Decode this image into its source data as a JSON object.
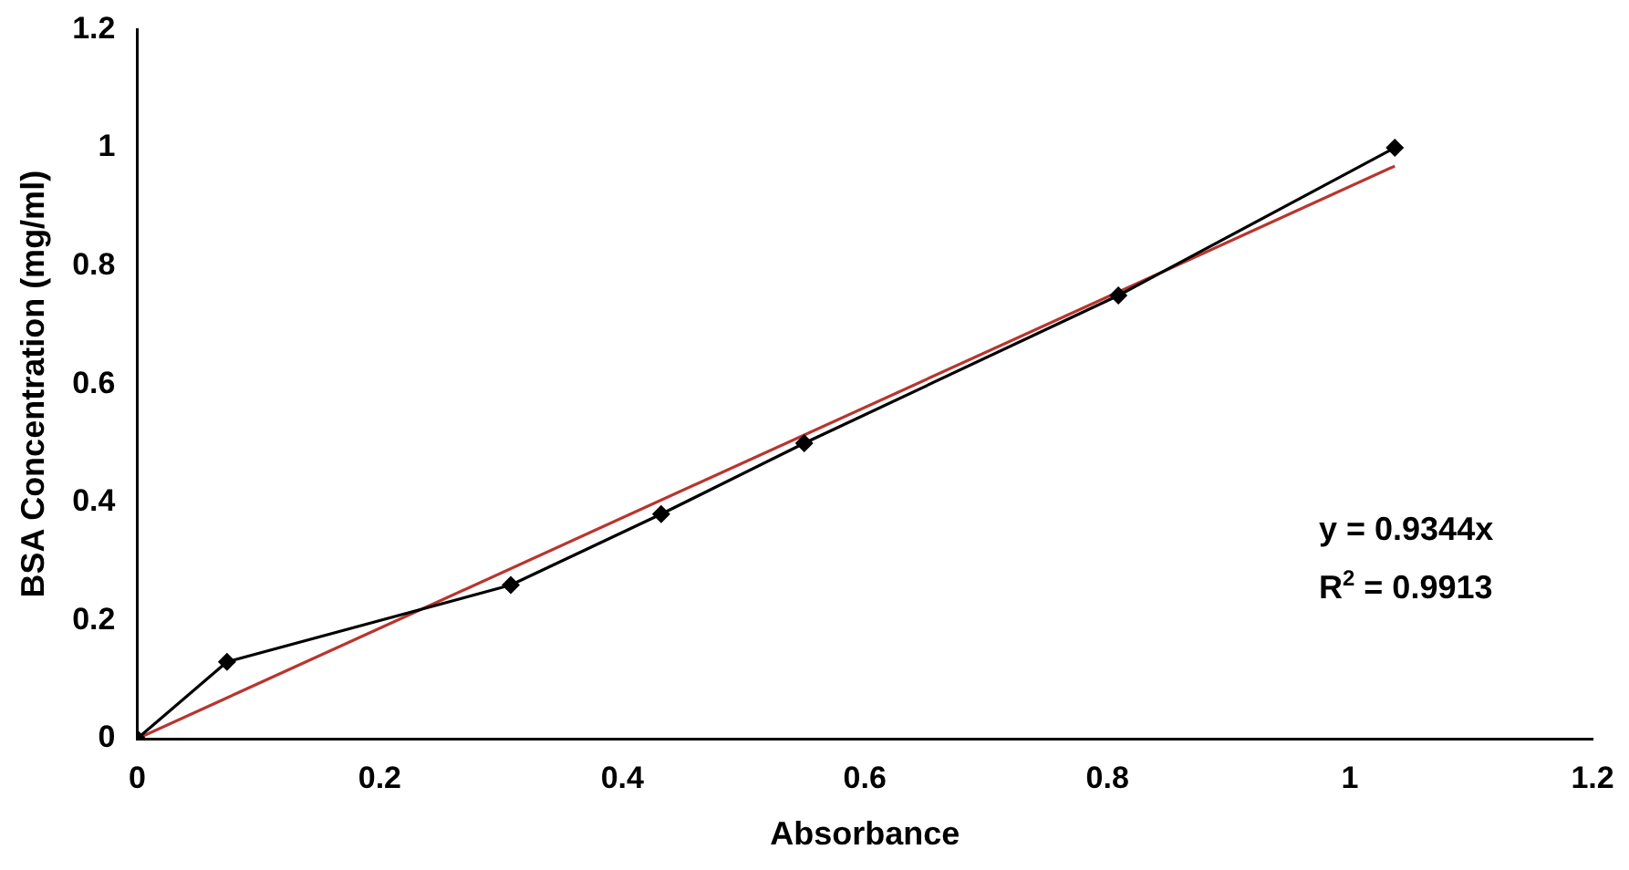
{
  "chart_data": {
    "type": "line",
    "xlabel": "Absorbance",
    "ylabel": "BSA Concentration (mg/ml)",
    "xlim": [
      0,
      1.2
    ],
    "xticks": [
      0,
      0.2,
      0.4,
      0.6,
      0.8,
      1,
      1.2
    ],
    "ylim": [
      0,
      1.2
    ],
    "yticks": [
      0,
      0.2,
      0.4,
      0.6,
      0.8,
      1,
      1.2
    ],
    "grid": false,
    "legend": false,
    "marker": "diamond",
    "line_style": "solid",
    "series": [
      {
        "color": "#000000",
        "x": [
          0,
          0.074,
          0.308,
          0.432,
          0.55,
          0.809,
          1.037
        ],
        "values": [
          0,
          0.13,
          0.26,
          0.38,
          0.5,
          0.75,
          1.0
        ]
      },
      {
        "color": "#b8352e",
        "marker": "none",
        "x": [
          0,
          1.037
        ],
        "values": [
          0,
          0.969
        ]
      }
    ],
    "annotations": [
      "y = 0.9344x",
      "R$^{2}$ = 0.9913"
    ]
  }
}
